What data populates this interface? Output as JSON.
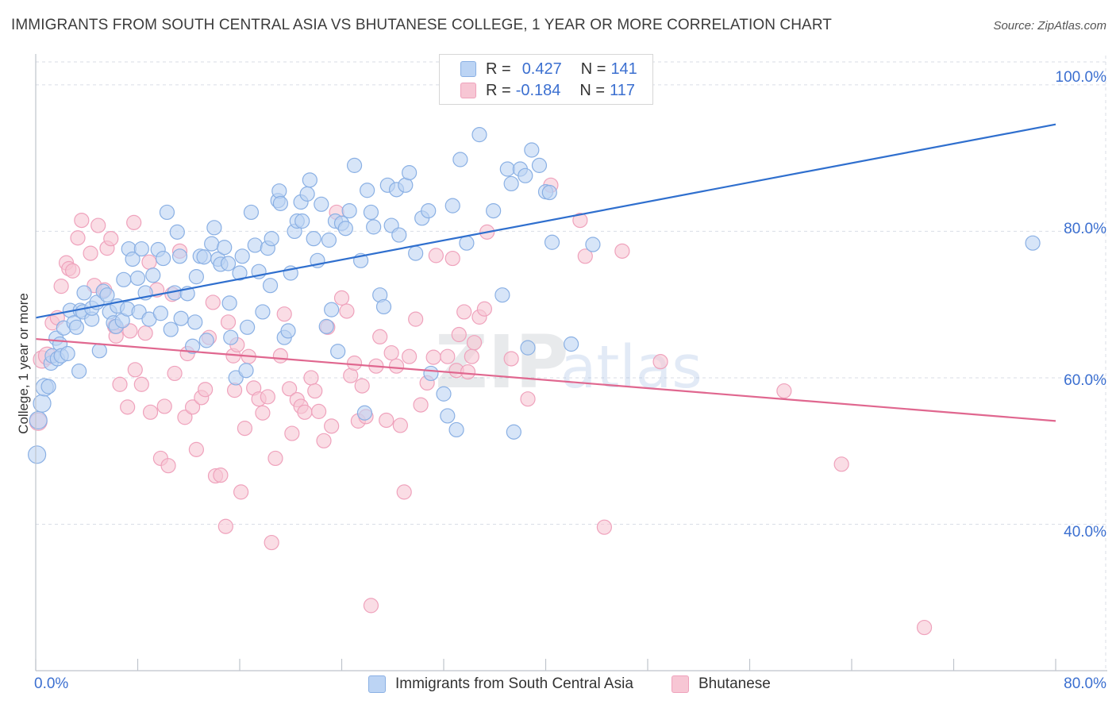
{
  "title": "IMMIGRANTS FROM SOUTH CENTRAL ASIA VS BHUTANESE COLLEGE, 1 YEAR OR MORE CORRELATION CHART",
  "source": "Source: ZipAtlas.com",
  "legend": {
    "series1": {
      "r_label": "R =",
      "r_value": "0.427",
      "n_label": "N =",
      "n_value": "141"
    },
    "series2": {
      "r_label": "R =",
      "r_value": "-0.184",
      "n_label": "N =",
      "n_value": "117"
    }
  },
  "bottom_legend": {
    "series1": "Immigrants from South Central Asia",
    "series2": "Bhutanese"
  },
  "colors": {
    "series1_fill": "#bcd4f4",
    "series1_stroke": "#8ab0e4",
    "series1_line": "#2f6fce",
    "series2_fill": "#f7c6d4",
    "series2_stroke": "#efa2bc",
    "series2_line": "#e0678f",
    "grid": "#d9dde6",
    "accent_text": "#3b6fd0"
  },
  "chart_data": {
    "type": "scatter",
    "title": "IMMIGRANTS FROM SOUTH CENTRAL ASIA VS BHUTANESE COLLEGE, 1 YEAR OR MORE CORRELATION CHART",
    "xlabel": "",
    "ylabel": "College, 1 year or more",
    "xlim": [
      0,
      80
    ],
    "ylim": [
      20,
      104
    ],
    "x_tick_labels": [
      "0.0%",
      "80.0%"
    ],
    "y_tick_labels": [
      "100.0%",
      "80.0%",
      "60.0%",
      "40.0%"
    ],
    "y_ticks": [
      100,
      80,
      60,
      40
    ],
    "grid": true,
    "watermark": "ZIPatlas",
    "series": [
      {
        "name": "Immigrants from South Central Asia",
        "r": 0.427,
        "n": 141,
        "trend": {
          "x": [
            0,
            80
          ],
          "y": [
            68.2,
            94.6
          ]
        },
        "points": [
          [
            0.1,
            49.5
          ],
          [
            0.2,
            54.2
          ],
          [
            0.5,
            56.5
          ],
          [
            0.7,
            58.7
          ],
          [
            1.0,
            58.8
          ],
          [
            1.2,
            62.0
          ],
          [
            1.3,
            63.0
          ],
          [
            1.6,
            65.4
          ],
          [
            1.7,
            62.6
          ],
          [
            1.9,
            64.6
          ],
          [
            2.0,
            63.0
          ],
          [
            2.2,
            66.8
          ],
          [
            2.5,
            63.3
          ],
          [
            2.7,
            69.2
          ],
          [
            3.0,
            67.5
          ],
          [
            3.2,
            66.9
          ],
          [
            3.4,
            60.9
          ],
          [
            3.5,
            69.2
          ],
          [
            3.8,
            71.6
          ],
          [
            3.7,
            69.0
          ],
          [
            4.4,
            68.0
          ],
          [
            4.4,
            69.5
          ],
          [
            4.8,
            70.3
          ],
          [
            5.0,
            63.7
          ],
          [
            5.3,
            71.8
          ],
          [
            5.6,
            71.3
          ],
          [
            5.8,
            69.0
          ],
          [
            6.1,
            67.5
          ],
          [
            6.3,
            67.0
          ],
          [
            6.4,
            69.8
          ],
          [
            6.8,
            67.8
          ],
          [
            6.9,
            73.4
          ],
          [
            7.2,
            69.4
          ],
          [
            7.3,
            77.6
          ],
          [
            7.6,
            76.2
          ],
          [
            8.0,
            73.6
          ],
          [
            8.1,
            69.0
          ],
          [
            8.3,
            77.6
          ],
          [
            8.6,
            71.6
          ],
          [
            8.9,
            68.0
          ],
          [
            9.2,
            74.0
          ],
          [
            9.6,
            77.5
          ],
          [
            9.8,
            68.8
          ],
          [
            10.0,
            76.3
          ],
          [
            10.3,
            82.6
          ],
          [
            10.6,
            66.6
          ],
          [
            10.9,
            71.6
          ],
          [
            11.1,
            79.9
          ],
          [
            11.3,
            76.6
          ],
          [
            11.4,
            68.1
          ],
          [
            11.9,
            71.5
          ],
          [
            12.3,
            64.3
          ],
          [
            12.5,
            67.6
          ],
          [
            12.6,
            73.8
          ],
          [
            12.9,
            76.6
          ],
          [
            13.2,
            76.5
          ],
          [
            13.4,
            65.1
          ],
          [
            13.8,
            78.3
          ],
          [
            14.0,
            80.5
          ],
          [
            14.3,
            76.2
          ],
          [
            14.5,
            75.5
          ],
          [
            14.8,
            77.8
          ],
          [
            15.1,
            75.6
          ],
          [
            15.2,
            70.2
          ],
          [
            15.3,
            65.5
          ],
          [
            15.7,
            60.0
          ],
          [
            16.0,
            74.3
          ],
          [
            16.2,
            76.6
          ],
          [
            16.5,
            61.0
          ],
          [
            16.6,
            66.9
          ],
          [
            16.9,
            82.6
          ],
          [
            17.2,
            78.1
          ],
          [
            17.5,
            74.5
          ],
          [
            17.8,
            69.0
          ],
          [
            18.2,
            77.7
          ],
          [
            18.4,
            72.6
          ],
          [
            18.5,
            79.0
          ],
          [
            19.0,
            84.2
          ],
          [
            19.1,
            85.5
          ],
          [
            19.2,
            83.8
          ],
          [
            19.5,
            65.5
          ],
          [
            19.8,
            66.4
          ],
          [
            20.0,
            74.3
          ],
          [
            20.3,
            80.0
          ],
          [
            20.5,
            81.4
          ],
          [
            20.8,
            84.0
          ],
          [
            20.9,
            81.4
          ],
          [
            21.3,
            85.1
          ],
          [
            21.5,
            87.0
          ],
          [
            21.8,
            79.0
          ],
          [
            22.1,
            76.0
          ],
          [
            22.4,
            83.7
          ],
          [
            22.8,
            67.0
          ],
          [
            23.0,
            78.8
          ],
          [
            23.2,
            69.3
          ],
          [
            23.5,
            81.4
          ],
          [
            23.7,
            63.6
          ],
          [
            24.0,
            81.1
          ],
          [
            24.3,
            80.4
          ],
          [
            24.6,
            82.8
          ],
          [
            25.0,
            89.0
          ],
          [
            25.5,
            76.0
          ],
          [
            25.8,
            55.2
          ],
          [
            26.0,
            85.6
          ],
          [
            26.3,
            82.6
          ],
          [
            26.5,
            80.6
          ],
          [
            27.0,
            71.3
          ],
          [
            27.3,
            69.7
          ],
          [
            27.6,
            86.3
          ],
          [
            27.9,
            80.8
          ],
          [
            28.3,
            85.7
          ],
          [
            28.5,
            79.5
          ],
          [
            29.0,
            86.3
          ],
          [
            29.3,
            88.0
          ],
          [
            29.8,
            77.0
          ],
          [
            30.3,
            81.8
          ],
          [
            30.8,
            82.8
          ],
          [
            31.0,
            60.6
          ],
          [
            32.0,
            57.8
          ],
          [
            32.3,
            54.8
          ],
          [
            32.7,
            83.5
          ],
          [
            33.0,
            52.9
          ],
          [
            33.3,
            89.8
          ],
          [
            33.8,
            78.4
          ],
          [
            34.8,
            93.2
          ],
          [
            35.9,
            82.8
          ],
          [
            36.6,
            71.3
          ],
          [
            37.0,
            88.5
          ],
          [
            37.3,
            86.5
          ],
          [
            37.5,
            52.6
          ],
          [
            38.0,
            88.5
          ],
          [
            38.4,
            87.6
          ],
          [
            38.6,
            64.1
          ],
          [
            38.9,
            91.1
          ],
          [
            39.5,
            89.0
          ],
          [
            40.0,
            85.4
          ],
          [
            40.3,
            85.3
          ],
          [
            40.5,
            78.5
          ],
          [
            42.0,
            64.6
          ],
          [
            43.7,
            78.2
          ],
          [
            78.2,
            78.4
          ]
        ]
      },
      {
        "name": "Bhutanese",
        "r": -0.184,
        "n": 117,
        "trend": {
          "x": [
            0,
            80
          ],
          "y": [
            65.3,
            54.1
          ]
        },
        "points": [
          [
            0.2,
            54.0
          ],
          [
            0.5,
            62.5
          ],
          [
            0.9,
            63.0
          ],
          [
            1.3,
            67.5
          ],
          [
            1.7,
            68.2
          ],
          [
            2.0,
            72.5
          ],
          [
            2.4,
            75.7
          ],
          [
            2.6,
            74.9
          ],
          [
            2.9,
            74.6
          ],
          [
            3.3,
            79.1
          ],
          [
            3.6,
            81.5
          ],
          [
            4.3,
            77.0
          ],
          [
            4.6,
            72.6
          ],
          [
            4.9,
            80.8
          ],
          [
            5.4,
            72.0
          ],
          [
            5.6,
            77.7
          ],
          [
            5.9,
            79.0
          ],
          [
            6.2,
            67.0
          ],
          [
            6.3,
            65.7
          ],
          [
            6.6,
            59.1
          ],
          [
            7.2,
            56.0
          ],
          [
            7.4,
            66.4
          ],
          [
            7.7,
            81.2
          ],
          [
            7.8,
            61.1
          ],
          [
            8.3,
            59.1
          ],
          [
            8.6,
            66.1
          ],
          [
            8.9,
            75.8
          ],
          [
            9.0,
            55.3
          ],
          [
            9.5,
            72.0
          ],
          [
            9.8,
            49.0
          ],
          [
            10.1,
            56.1
          ],
          [
            10.4,
            48.0
          ],
          [
            10.7,
            71.4
          ],
          [
            10.9,
            60.6
          ],
          [
            11.3,
            77.3
          ],
          [
            11.7,
            54.6
          ],
          [
            11.9,
            63.3
          ],
          [
            12.3,
            56.0
          ],
          [
            12.6,
            50.2
          ],
          [
            13.0,
            57.3
          ],
          [
            13.3,
            58.4
          ],
          [
            13.6,
            65.5
          ],
          [
            13.9,
            70.3
          ],
          [
            14.1,
            46.6
          ],
          [
            14.5,
            46.7
          ],
          [
            14.9,
            39.7
          ],
          [
            15.1,
            67.6
          ],
          [
            15.5,
            63.0
          ],
          [
            15.6,
            58.3
          ],
          [
            15.8,
            64.5
          ],
          [
            16.1,
            44.4
          ],
          [
            16.4,
            53.1
          ],
          [
            16.7,
            62.9
          ],
          [
            17.1,
            58.6
          ],
          [
            17.5,
            57.1
          ],
          [
            17.8,
            55.2
          ],
          [
            18.2,
            57.4
          ],
          [
            18.5,
            37.5
          ],
          [
            18.8,
            49.0
          ],
          [
            19.2,
            63.0
          ],
          [
            19.5,
            68.7
          ],
          [
            19.9,
            58.5
          ],
          [
            20.1,
            52.4
          ],
          [
            20.5,
            57.0
          ],
          [
            20.8,
            56.1
          ],
          [
            21.1,
            55.3
          ],
          [
            21.6,
            60.0
          ],
          [
            21.9,
            58.2
          ],
          [
            22.2,
            55.4
          ],
          [
            22.6,
            51.4
          ],
          [
            22.9,
            66.9
          ],
          [
            23.2,
            53.4
          ],
          [
            23.6,
            82.6
          ],
          [
            24.0,
            70.9
          ],
          [
            24.4,
            69.1
          ],
          [
            24.7,
            60.3
          ],
          [
            25.0,
            62.0
          ],
          [
            25.3,
            54.1
          ],
          [
            25.6,
            58.9
          ],
          [
            25.9,
            54.7
          ],
          [
            26.3,
            28.9
          ],
          [
            26.7,
            61.6
          ],
          [
            27.0,
            65.6
          ],
          [
            27.5,
            54.2
          ],
          [
            27.9,
            63.4
          ],
          [
            28.3,
            61.6
          ],
          [
            28.6,
            53.5
          ],
          [
            28.9,
            44.4
          ],
          [
            29.3,
            62.9
          ],
          [
            29.8,
            68.0
          ],
          [
            30.2,
            56.3
          ],
          [
            30.7,
            59.3
          ],
          [
            31.2,
            62.8
          ],
          [
            31.4,
            76.7
          ],
          [
            32.3,
            62.9
          ],
          [
            32.7,
            76.3
          ],
          [
            33.0,
            61.0
          ],
          [
            33.2,
            65.9
          ],
          [
            33.6,
            69.0
          ],
          [
            33.9,
            60.8
          ],
          [
            34.2,
            62.9
          ],
          [
            34.4,
            64.8
          ],
          [
            34.8,
            68.3
          ],
          [
            35.2,
            69.4
          ],
          [
            35.4,
            79.9
          ],
          [
            37.3,
            62.6
          ],
          [
            38.6,
            57.1
          ],
          [
            40.4,
            86.3
          ],
          [
            42.7,
            81.5
          ],
          [
            43.1,
            76.6
          ],
          [
            44.6,
            39.6
          ],
          [
            46.0,
            77.3
          ],
          [
            49.0,
            62.2
          ],
          [
            58.7,
            58.2
          ],
          [
            63.2,
            48.2
          ],
          [
            69.7,
            25.9
          ]
        ]
      }
    ]
  }
}
